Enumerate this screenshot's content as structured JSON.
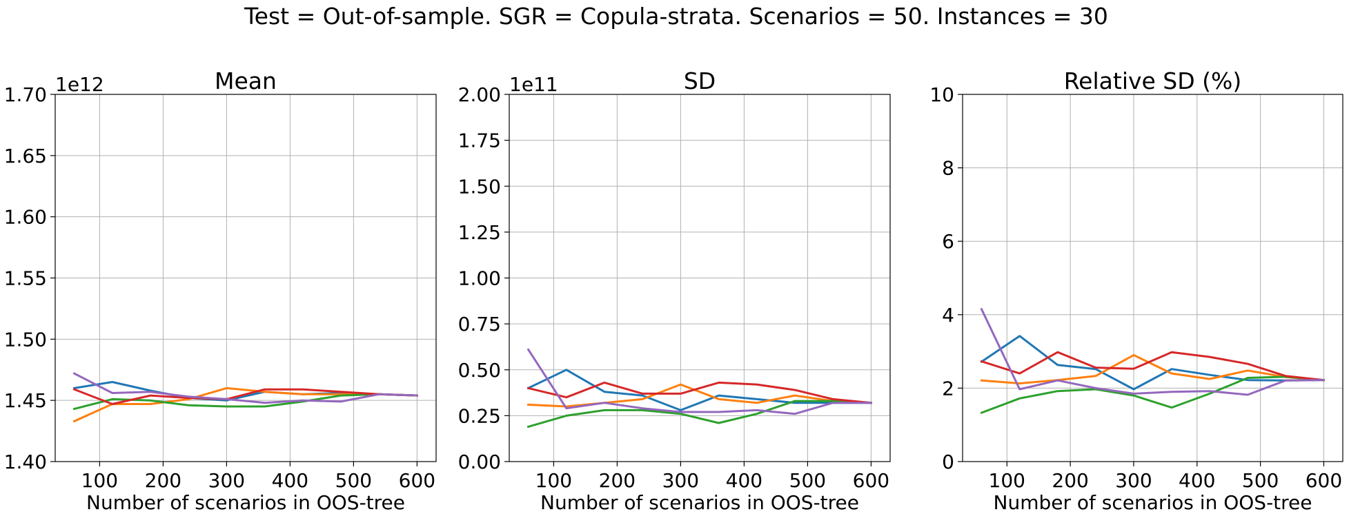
{
  "figure": {
    "suptitle": "Test = Out-of-sample. SGR = Copula-strata. Scenarios = 50. Instances = 30"
  },
  "chart_data": [
    {
      "type": "line",
      "title": "Mean",
      "xlabel": "Number of scenarios in OOS-tree",
      "ylabel": "",
      "offset_text": "1e12",
      "x": [
        60,
        120,
        180,
        240,
        300,
        360,
        420,
        480,
        540,
        600
      ],
      "xlim": [
        30,
        630
      ],
      "xticks": [
        100,
        200,
        300,
        400,
        500,
        600
      ],
      "ylim": [
        1.4,
        1.7
      ],
      "yticks": [
        "1.40",
        "1.45",
        "1.50",
        "1.55",
        "1.60",
        "1.65",
        "1.70"
      ],
      "grid": true,
      "series": [
        {
          "color": "#1f77b4",
          "values": [
            1.46,
            1.465,
            1.458,
            1.452,
            1.45,
            1.457,
            1.455,
            1.456,
            1.455,
            1.454
          ]
        },
        {
          "color": "#ff7f0e",
          "values": [
            1.433,
            1.447,
            1.447,
            1.451,
            1.46,
            1.457,
            1.455,
            1.455,
            1.455,
            1.454
          ]
        },
        {
          "color": "#2ca02c",
          "values": [
            1.443,
            1.451,
            1.45,
            1.446,
            1.445,
            1.445,
            1.449,
            1.454,
            1.455,
            1.454
          ]
        },
        {
          "color": "#d62728",
          "values": [
            1.459,
            1.447,
            1.454,
            1.452,
            1.451,
            1.459,
            1.459,
            1.457,
            1.455,
            1.454
          ]
        },
        {
          "color": "#9467bd",
          "values": [
            1.472,
            1.456,
            1.457,
            1.453,
            1.451,
            1.448,
            1.45,
            1.449,
            1.455,
            1.454
          ]
        }
      ]
    },
    {
      "type": "line",
      "title": "SD",
      "xlabel": "Number of scenarios in OOS-tree",
      "ylabel": "",
      "offset_text": "1e11",
      "x": [
        60,
        120,
        180,
        240,
        300,
        360,
        420,
        480,
        540,
        600
      ],
      "xlim": [
        30,
        630
      ],
      "xticks": [
        100,
        200,
        300,
        400,
        500,
        600
      ],
      "ylim": [
        0.0,
        2.0
      ],
      "yticks": [
        "0.00",
        "0.25",
        "0.50",
        "0.75",
        "1.00",
        "1.25",
        "1.50",
        "1.75",
        "2.00"
      ],
      "grid": true,
      "series": [
        {
          "color": "#1f77b4",
          "values": [
            0.4,
            0.5,
            0.38,
            0.36,
            0.28,
            0.36,
            0.34,
            0.32,
            0.32,
            0.32
          ]
        },
        {
          "color": "#ff7f0e",
          "values": [
            0.31,
            0.3,
            0.32,
            0.34,
            0.42,
            0.34,
            0.32,
            0.36,
            0.33,
            0.32
          ]
        },
        {
          "color": "#2ca02c",
          "values": [
            0.19,
            0.25,
            0.28,
            0.28,
            0.26,
            0.21,
            0.26,
            0.33,
            0.33,
            0.32
          ]
        },
        {
          "color": "#d62728",
          "values": [
            0.4,
            0.35,
            0.43,
            0.37,
            0.37,
            0.43,
            0.42,
            0.39,
            0.34,
            0.32
          ]
        },
        {
          "color": "#9467bd",
          "values": [
            0.61,
            0.29,
            0.32,
            0.29,
            0.27,
            0.27,
            0.28,
            0.26,
            0.32,
            0.32
          ]
        }
      ]
    },
    {
      "type": "line",
      "title": "Relative SD (%)",
      "xlabel": "Number of scenarios in OOS-tree",
      "ylabel": "",
      "offset_text": "",
      "x": [
        60,
        120,
        180,
        240,
        300,
        360,
        420,
        480,
        540,
        600
      ],
      "xlim": [
        30,
        630
      ],
      "xticks": [
        100,
        200,
        300,
        400,
        500,
        600
      ],
      "ylim": [
        0,
        10
      ],
      "yticks": [
        "0",
        "2",
        "4",
        "6",
        "8",
        "10"
      ],
      "grid": true,
      "series": [
        {
          "color": "#1f77b4",
          "values": [
            2.72,
            3.42,
            2.63,
            2.52,
            1.97,
            2.52,
            2.36,
            2.22,
            2.21,
            2.22
          ]
        },
        {
          "color": "#ff7f0e",
          "values": [
            2.21,
            2.13,
            2.22,
            2.33,
            2.9,
            2.4,
            2.25,
            2.48,
            2.3,
            2.22
          ]
        },
        {
          "color": "#2ca02c",
          "values": [
            1.33,
            1.72,
            1.92,
            1.97,
            1.8,
            1.47,
            1.85,
            2.28,
            2.31,
            2.22
          ]
        },
        {
          "color": "#d62728",
          "values": [
            2.73,
            2.4,
            2.98,
            2.56,
            2.53,
            2.98,
            2.85,
            2.66,
            2.33,
            2.22
          ]
        },
        {
          "color": "#9467bd",
          "values": [
            4.15,
            1.97,
            2.21,
            2.0,
            1.85,
            1.9,
            1.92,
            1.82,
            2.21,
            2.22
          ]
        }
      ]
    }
  ]
}
